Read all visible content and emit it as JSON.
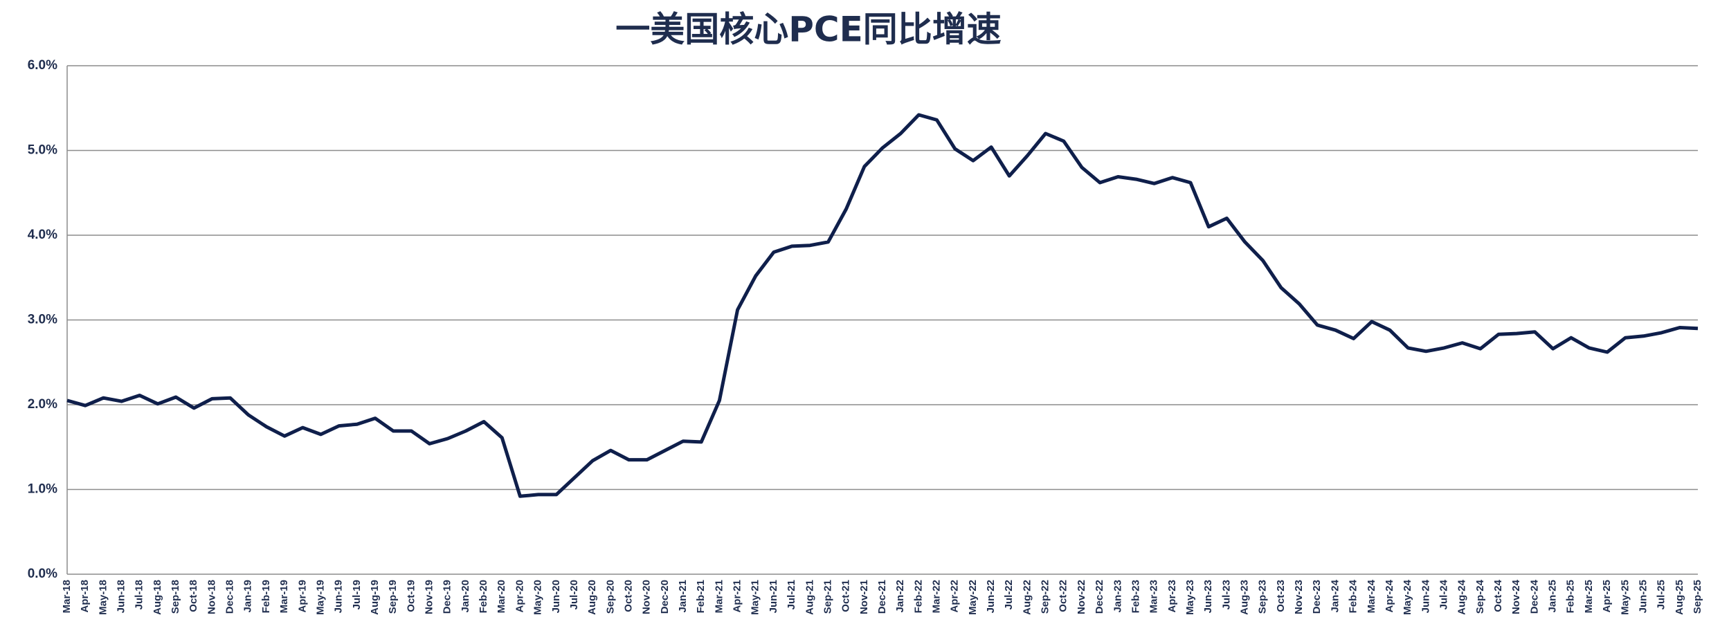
{
  "chart_data": {
    "type": "line",
    "title": "一美国核心PCE同比增速",
    "categories": [
      "Mar-18",
      "Apr-18",
      "May-18",
      "Jun-18",
      "Jul-18",
      "Aug-18",
      "Sep-18",
      "Oct-18",
      "Nov-18",
      "Dec-18",
      "Jan-19",
      "Feb-19",
      "Mar-19",
      "Apr-19",
      "May-19",
      "Jun-19",
      "Jul-19",
      "Aug-19",
      "Sep-19",
      "Oct-19",
      "Nov-19",
      "Dec-19",
      "Jan-20",
      "Feb-20",
      "Mar-20",
      "Apr-20",
      "May-20",
      "Jun-20",
      "Jul-20",
      "Aug-20",
      "Sep-20",
      "Oct-20",
      "Nov-20",
      "Dec-20",
      "Jan-21",
      "Feb-21",
      "Mar-21",
      "Apr-21",
      "May-21",
      "Jun-21",
      "Jul-21",
      "Aug-21",
      "Sep-21",
      "Oct-21",
      "Nov-21",
      "Dec-21",
      "Jan-22",
      "Feb-22",
      "Mar-22",
      "Apr-22",
      "May-22",
      "Jun-22",
      "Jul-22",
      "Aug-22",
      "Sep-22",
      "Oct-22",
      "Nov-22",
      "Dec-22",
      "Jan-23",
      "Feb-23",
      "Mar-23",
      "Apr-23",
      "May-23",
      "Jun-23",
      "Jul-23",
      "Aug-23",
      "Sep-23",
      "Oct-23",
      "Nov-23",
      "Dec-23",
      "Jan-24",
      "Feb-24",
      "Mar-24",
      "Apr-24",
      "May-24",
      "Jun-24",
      "Jul-24",
      "Aug-24",
      "Sep-24",
      "Oct-24",
      "Nov-24",
      "Dec-24",
      "Jan-25",
      "Feb-25",
      "Mar-25",
      "Apr-25",
      "May-25",
      "Jun-25",
      "Jul-25",
      "Aug-25",
      "Sep-25"
    ],
    "series": [
      {
        "color": "#0f1f4b",
        "values": [
          2.05,
          1.99,
          2.08,
          2.04,
          2.11,
          2.01,
          2.09,
          1.96,
          2.07,
          2.08,
          1.88,
          1.74,
          1.63,
          1.73,
          1.65,
          1.75,
          1.77,
          1.84,
          1.69,
          1.69,
          1.54,
          1.6,
          1.69,
          1.8,
          1.61,
          0.92,
          0.94,
          0.94,
          1.14,
          1.34,
          1.46,
          1.35,
          1.35,
          1.46,
          1.57,
          1.56,
          2.05,
          3.12,
          3.52,
          3.8,
          3.87,
          3.88,
          3.92,
          4.31,
          4.81,
          5.03,
          5.2,
          5.42,
          5.36,
          5.02,
          4.88,
          5.04,
          4.7,
          4.94,
          5.2,
          5.11,
          4.8,
          4.62,
          4.69,
          4.66,
          4.61,
          4.68,
          4.62,
          4.1,
          4.2,
          3.92,
          3.7,
          3.38,
          3.19,
          2.94,
          2.88,
          2.78,
          2.98,
          2.88,
          2.67,
          2.63,
          2.67,
          2.73,
          2.66,
          2.83,
          2.84,
          2.86,
          2.66,
          2.79,
          2.67,
          2.62,
          2.79,
          2.81,
          2.85,
          2.91,
          2.9
        ]
      }
    ],
    "ylim": [
      0,
      6
    ],
    "yticks": [
      {
        "value": 0,
        "label": "0.0%"
      },
      {
        "value": 1,
        "label": "1.0%"
      },
      {
        "value": 2,
        "label": "2.0%"
      },
      {
        "value": 3,
        "label": "3.0%"
      },
      {
        "value": 4,
        "label": "4.0%"
      },
      {
        "value": 5,
        "label": "5.0%"
      },
      {
        "value": 6,
        "label": "6.0%"
      }
    ],
    "grid": true
  }
}
